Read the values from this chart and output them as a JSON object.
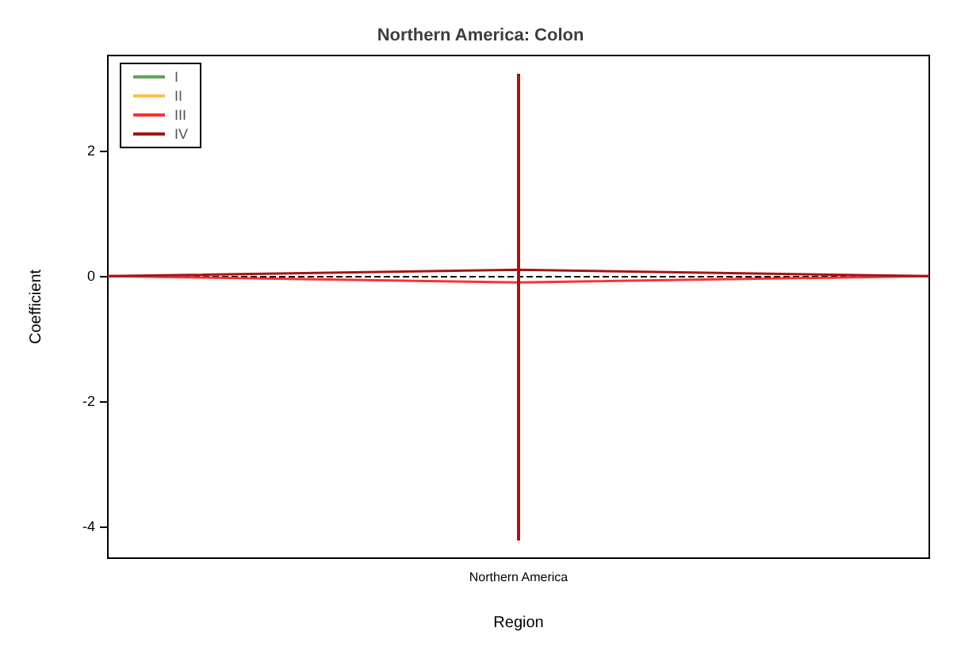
{
  "chart_data": {
    "type": "line",
    "title": "Northern America: Colon",
    "xlabel": "Region",
    "ylabel": "Coefficient",
    "categories": [
      null,
      "Northern America",
      null
    ],
    "series": [
      {
        "name": "I",
        "color": "#5aa95a",
        "values": [
          null,
          null,
          null
        ]
      },
      {
        "name": "II",
        "color": "#ffc04c",
        "values": [
          null,
          null,
          null
        ]
      },
      {
        "name": "III",
        "color": "#ff3030",
        "values": [
          0,
          -0.1,
          0
        ],
        "errors": [
          null,
          [
            -0.16,
            0
          ],
          null
        ]
      },
      {
        "name": "IV",
        "color": "#a31515",
        "values": [
          0,
          0.1,
          0
        ],
        "errors": [
          null,
          [
            -4.22,
            3.23
          ],
          null
        ]
      }
    ],
    "ylim": [
      -4.5,
      3.52
    ],
    "yticks": [
      -4,
      -2,
      0,
      2
    ],
    "ref_lines": [
      {
        "axis": "y",
        "value": 0,
        "line_style": "dashed",
        "color": "#000000"
      }
    ],
    "legend": "top left",
    "grid": false,
    "marker": "none"
  }
}
